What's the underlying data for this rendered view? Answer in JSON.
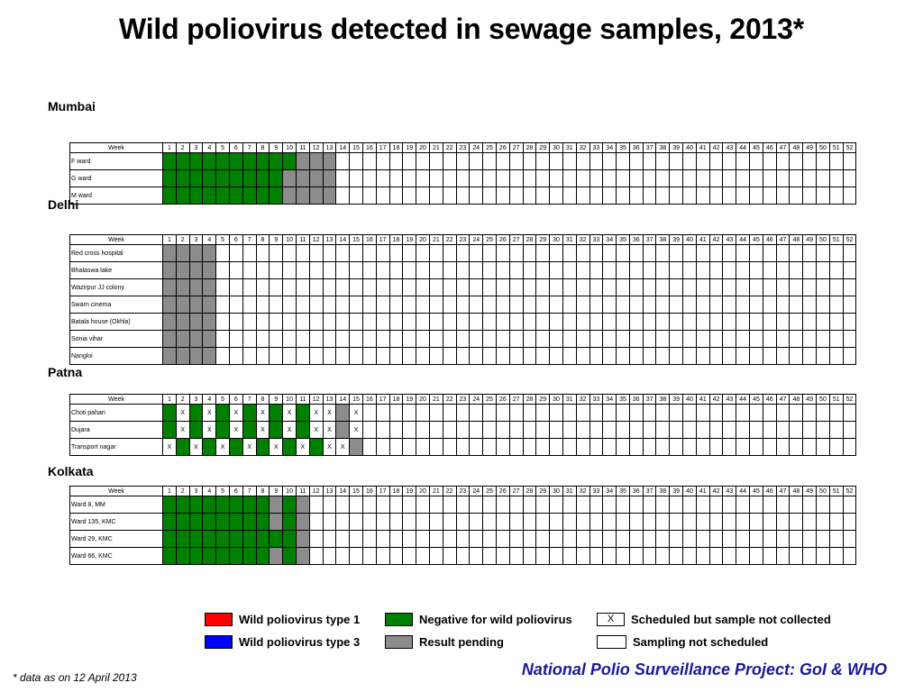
{
  "title": "Wild poliovirus detected in sewage samples, 2013*",
  "week_header": "Week",
  "weeks": 52,
  "colors": {
    "green": "#008000",
    "gray": "#8c8c8c",
    "red": "#ff0000",
    "blue": "#0000ff",
    "white": "#ffffff"
  },
  "sections": [
    {
      "city": "Mumbai",
      "rows": [
        {
          "label": "F ward",
          "cells": "GGGGGGGGGGPPP"
        },
        {
          "label": "G ward",
          "cells": "GGGGGGGGGPPPP"
        },
        {
          "label": "M ward",
          "cells": "GGGGGGGGGPPPP"
        }
      ]
    },
    {
      "city": "Delhi",
      "rows": [
        {
          "label": "Red cross hospital",
          "cells": "PPPP"
        },
        {
          "label": "Bhalaswa lake",
          "cells": "PPPP"
        },
        {
          "label": "Wazirpur JJ colony",
          "cells": "PPPP"
        },
        {
          "label": "Swarn cinema",
          "cells": "PPPP"
        },
        {
          "label": "Batala house (Okhla)",
          "cells": "PPPP"
        },
        {
          "label": "Sonia vihar",
          "cells": "PPPP"
        },
        {
          "label": "Nangloi",
          "cells": "PPPP"
        }
      ]
    },
    {
      "city": "Patna",
      "rows": [
        {
          "label": "Choti pahari",
          "cells": "GXGXGXGXGXGXXPX"
        },
        {
          "label": "Dujara",
          "cells": "GXGXGXGXGXGXXPX"
        },
        {
          "label": "Transport nagar",
          "cells": "XGXGXGXGXGXGXXP"
        }
      ]
    },
    {
      "city": "Kolkata",
      "rows": [
        {
          "label": "Ward 8, MM",
          "cells": "GGGGGGGGPGP"
        },
        {
          "label": "Ward 135, KMC",
          "cells": "GGGGGGGGPGP"
        },
        {
          "label": "Ward 29, KMC",
          "cells": "GGGGGGGGGGP"
        },
        {
          "label": "Ward 66, KMC",
          "cells": "GGGGGGGGPGP"
        }
      ]
    }
  ],
  "legend": {
    "wpv1": "Wild poliovirus type 1",
    "wpv3": "Wild poliovirus type 3",
    "negative": "Negative for wild poliovirus",
    "pending": "Result pending",
    "scheduled_not_collected": "Scheduled but sample not collected",
    "not_scheduled": "Sampling not scheduled",
    "x_mark": "X"
  },
  "footnote": "* data as on 12 April 2013",
  "project": "National Polio Surveillance Project: GoI & WHO"
}
